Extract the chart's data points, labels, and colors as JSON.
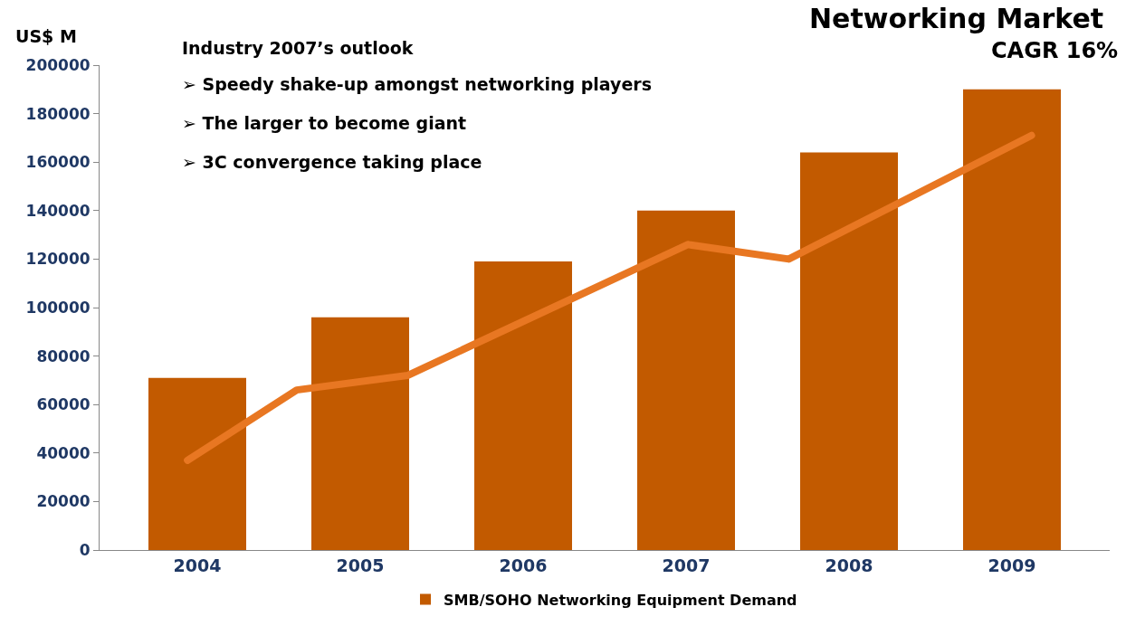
{
  "chart_data": {
    "type": "bar",
    "title": "Networking Market",
    "ylabel": "US$ M",
    "x": [
      2004,
      2005,
      2006,
      2007,
      2008,
      2009
    ],
    "xlim": [
      2003.4,
      2009.6
    ],
    "xticks": [
      2004,
      2005,
      2006,
      2007,
      2008,
      2009
    ],
    "ylim": [
      0,
      200000
    ],
    "yticks": [
      0,
      20000,
      40000,
      60000,
      80000,
      100000,
      120000,
      140000,
      160000,
      180000,
      200000
    ],
    "series": [
      {
        "name": "SMB/SOHO Networking Equipment Demand",
        "color": "#c25a00",
        "values": [
          71000,
          96000,
          119000,
          140000,
          164000,
          190000
        ]
      },
      {
        "type": "line",
        "color": "#e87722",
        "x": [
          2003.94,
          2004.61,
          2005.29,
          2007.01,
          2007.63,
          2009.12
        ],
        "values": [
          37000,
          66000,
          72000,
          126000,
          120000,
          171000
        ]
      }
    ],
    "annotations": [
      "Industry 2007’s outlook",
      "➢ Speedy shake-up amongst networking players",
      "➢ The larger to become giant",
      "➢ 3C convergence taking place",
      "CAGR 16%"
    ],
    "grid": false,
    "legend": "bottom",
    "line_style": "solid"
  }
}
